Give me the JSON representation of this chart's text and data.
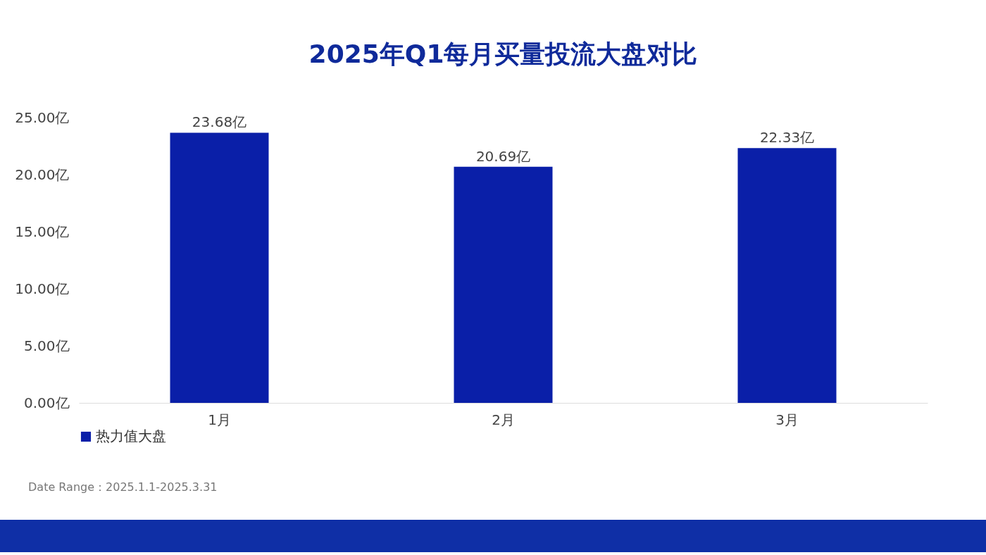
{
  "chart_data": {
    "type": "bar",
    "title": "2025年Q1每月买量投流大盘对比",
    "categories": [
      "1月",
      "2月",
      "3月"
    ],
    "series": [
      {
        "name": "热力值大盘",
        "color": "#0a1fa8",
        "values": [
          23.68,
          20.69,
          22.33
        ],
        "value_labels": [
          "23.68亿",
          "20.69亿",
          "22.33亿"
        ]
      }
    ],
    "ylim": [
      0,
      25
    ],
    "yticks": [
      {
        "value": 0,
        "label": "0.00亿"
      },
      {
        "value": 5,
        "label": "5.00亿"
      },
      {
        "value": 10,
        "label": "10.00亿"
      },
      {
        "value": 15,
        "label": "15.00亿"
      },
      {
        "value": 20,
        "label": "20.00亿"
      },
      {
        "value": 25,
        "label": "25.00亿"
      }
    ],
    "legend": "bottom",
    "grid": false,
    "annotations": [
      "Date Range：2025.1.1-2025.3.31"
    ]
  }
}
